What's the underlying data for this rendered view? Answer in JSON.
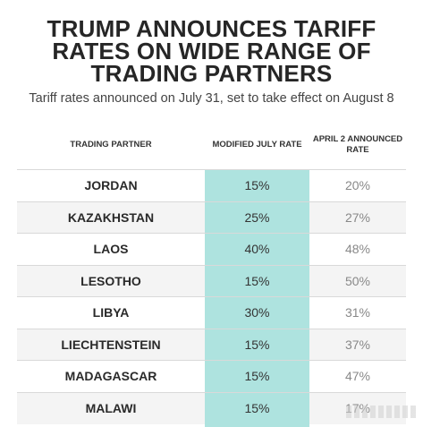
{
  "title": "TRUMP ANNOUNCES TARIFF RATES ON WIDE RANGE OF TRADING PARTNERS",
  "subtitle": "Tariff rates announced on July 31, set to take effect on August 8",
  "chart_data": {
    "type": "table",
    "columns": [
      "TRADING PARTNER",
      "MODIFIED JULY RATE",
      "APRIL 2 ANNOUNCED RATE"
    ],
    "rows": [
      {
        "partner": "JORDAN",
        "july": "15%",
        "april": "20%"
      },
      {
        "partner": "KAZAKHSTAN",
        "july": "25%",
        "april": "27%"
      },
      {
        "partner": "LAOS",
        "july": "40%",
        "april": "48%"
      },
      {
        "partner": "LESOTHO",
        "july": "15%",
        "april": "50%"
      },
      {
        "partner": "LIBYA",
        "july": "30%",
        "april": "31%"
      },
      {
        "partner": "LIECHTENSTEIN",
        "july": "15%",
        "april": "37%"
      },
      {
        "partner": "MADAGASCAR",
        "july": "15%",
        "april": "47%"
      },
      {
        "partner": "MALAWI",
        "july": "15%",
        "april": "17%"
      }
    ],
    "highlight_column": "MODIFIED JULY RATE",
    "highlight_color": "#aee3df"
  }
}
